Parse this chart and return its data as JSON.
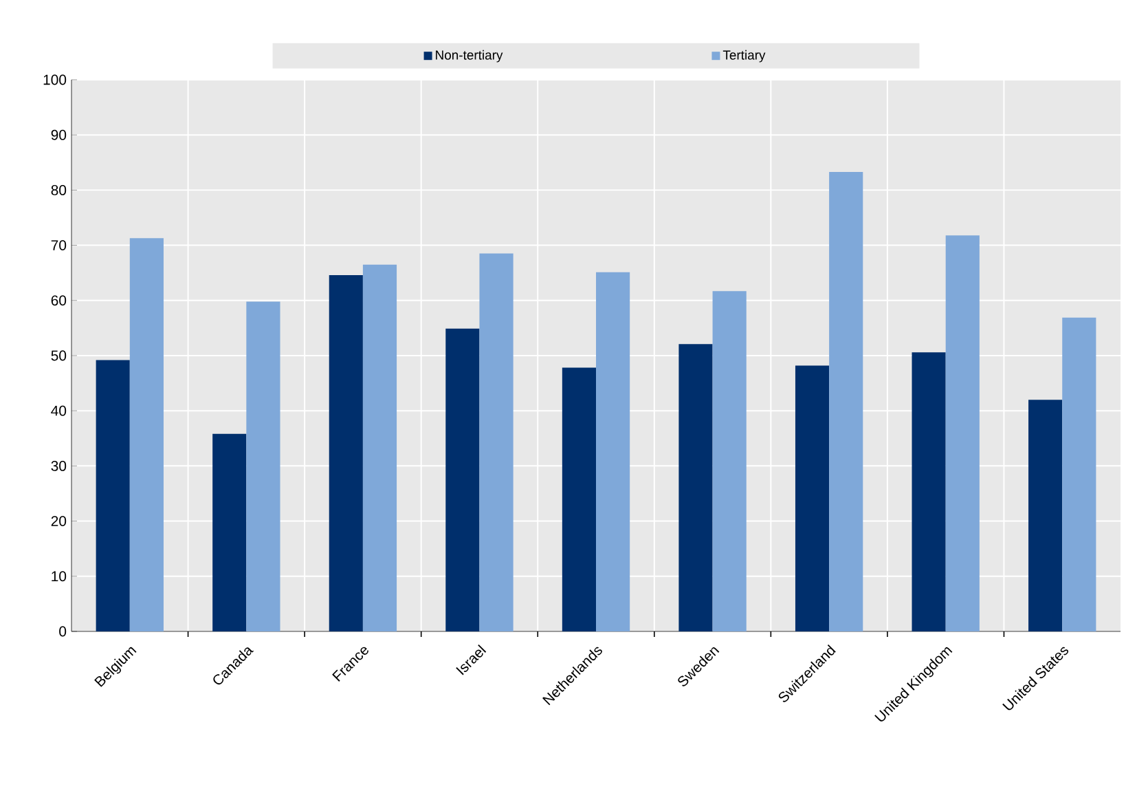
{
  "chart_data": {
    "type": "bar",
    "categories": [
      "Belgium",
      "Canada",
      "France",
      "Israel",
      "Netherlands",
      "Sweden",
      "Switzerland",
      "United Kingdom",
      "United States"
    ],
    "series": [
      {
        "name": "Non-tertiary",
        "color": "#002f6c",
        "values": [
          49.2,
          35.8,
          64.6,
          54.9,
          47.8,
          52.1,
          48.2,
          50.6,
          42.0
        ]
      },
      {
        "name": "Tertiary",
        "color": "#7fa8d9",
        "values": [
          71.3,
          59.8,
          66.5,
          68.5,
          65.1,
          61.7,
          83.3,
          71.8,
          56.9
        ]
      }
    ],
    "ylim": [
      0,
      100
    ],
    "yticks": [
      0,
      10,
      20,
      30,
      40,
      50,
      60,
      70,
      80,
      90,
      100
    ],
    "grid": true,
    "legend": "top"
  }
}
